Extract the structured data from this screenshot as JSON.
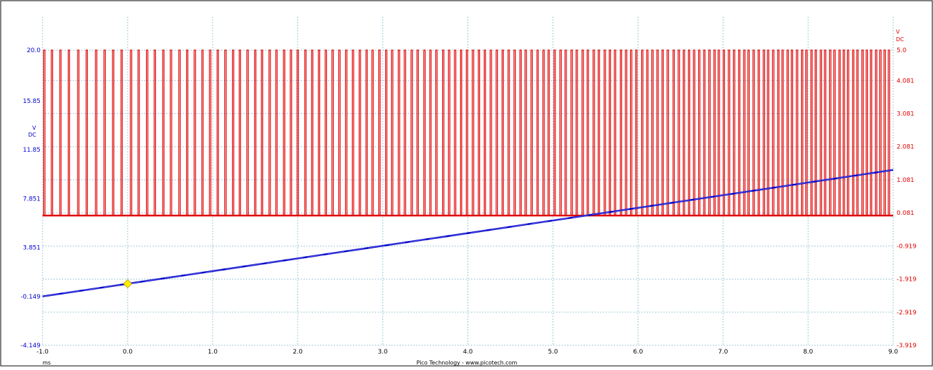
{
  "chart_data": {
    "type": "line",
    "x_unit": "ms",
    "footer_text": "Pico Technology - www.picotech.com",
    "x_ticks": [
      "-1.0",
      "0.0",
      "1.0",
      "2.0",
      "3.0",
      "4.0",
      "5.0",
      "6.0",
      "7.0",
      "8.0",
      "9.0"
    ],
    "xlim": [
      -1.0,
      9.0
    ],
    "left_axis": {
      "unit": "V",
      "coupling": "DC",
      "color": "#0000cc",
      "ticks": [
        "20.0",
        "15.85",
        "11.85",
        "7.851",
        "3.851",
        "-0.149",
        "-4.149"
      ],
      "ylim": [
        -4.149,
        20.0
      ]
    },
    "right_axis": {
      "unit": "V",
      "coupling": "DC",
      "color": "#e00000",
      "ticks": [
        "5.0",
        "4.081",
        "3.081",
        "2.081",
        "1.081",
        "0.081",
        "-0.919",
        "-1.919",
        "-2.919",
        "-3.919"
      ],
      "ylim": [
        -3.919,
        5.0
      ]
    },
    "grid": true,
    "series": [
      {
        "color": "#e00000",
        "axis": "right",
        "kind": "pulse_train",
        "low": 0.0,
        "high": 5.0,
        "pulse_times": [
          -0.98,
          -0.89,
          -0.79,
          -0.69,
          -0.58,
          -0.48,
          -0.37,
          -0.27,
          -0.17,
          -0.07,
          0.04,
          0.13,
          0.23,
          0.32,
          0.42,
          0.51,
          0.61,
          0.7,
          0.79,
          0.88,
          0.97,
          1.06,
          1.15,
          1.24,
          1.32,
          1.41,
          1.5,
          1.58,
          1.67,
          1.75,
          1.84,
          1.92,
          2.0,
          2.09,
          2.17,
          2.25,
          2.33,
          2.41,
          2.49,
          2.57,
          2.65,
          2.73,
          2.81,
          2.88,
          2.96,
          3.04,
          3.11,
          3.19,
          3.26,
          3.34,
          3.41,
          3.49,
          3.56,
          3.63,
          3.71,
          3.78,
          3.85,
          3.92,
          3.99,
          4.06,
          4.13,
          4.2,
          4.27,
          4.34,
          4.41,
          4.48,
          4.55,
          4.62,
          4.68,
          4.75,
          4.82,
          4.89,
          4.95,
          5.02,
          5.09,
          5.15,
          5.22,
          5.28,
          5.35,
          5.41,
          5.48,
          5.54,
          5.61,
          5.67,
          5.73,
          5.8,
          5.86,
          5.92,
          5.98,
          6.05,
          6.11,
          6.17,
          6.23,
          6.29,
          6.35,
          6.42,
          6.48,
          6.54,
          6.6,
          6.66,
          6.72,
          6.78,
          6.84,
          6.9,
          6.95,
          7.01,
          7.07,
          7.13,
          7.19,
          7.25,
          7.3,
          7.36,
          7.42,
          7.48,
          7.53,
          7.59,
          7.65,
          7.7,
          7.76,
          7.81,
          7.87,
          7.93,
          7.98,
          8.04,
          8.09,
          8.15,
          8.2,
          8.26,
          8.31,
          8.37,
          8.42,
          8.47,
          8.53,
          8.58,
          8.64,
          8.69,
          8.74,
          8.8,
          8.85,
          8.9,
          8.95
        ]
      },
      {
        "color": "#0000cc",
        "axis": "left",
        "kind": "line",
        "x": [
          -1.0,
          9.0
        ],
        "y": [
          -0.149,
          10.2
        ]
      }
    ],
    "trigger_marker": {
      "x": 0.0,
      "color": "#ffee00"
    }
  }
}
